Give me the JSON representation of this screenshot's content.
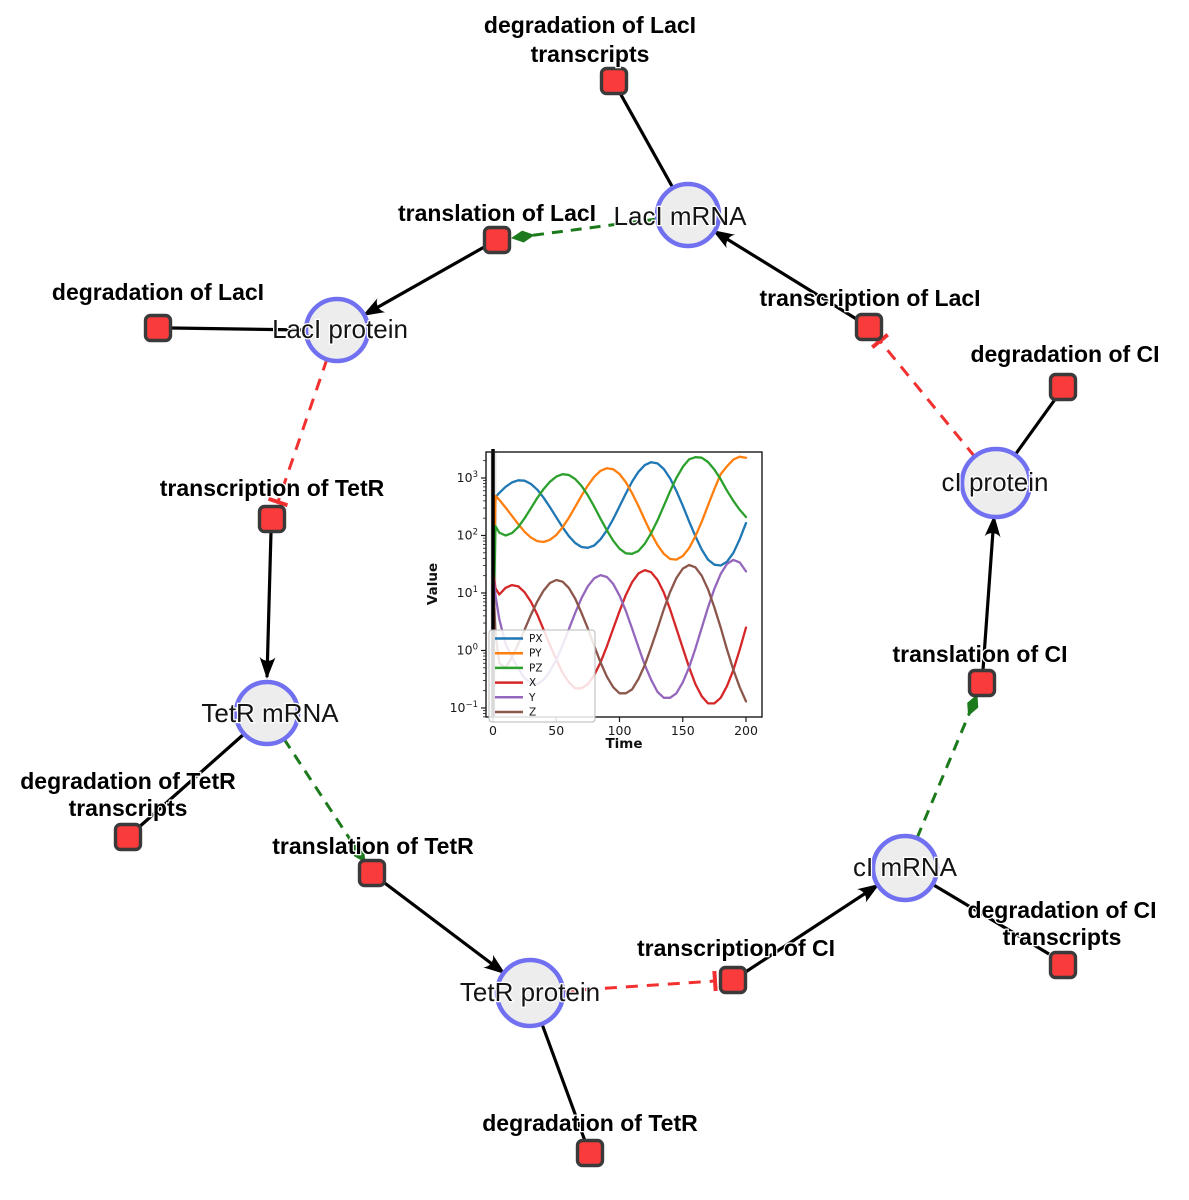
{
  "network": {
    "species": [
      {
        "id": "laci-mrna",
        "label": "LacI mRNA"
      },
      {
        "id": "laci-protein",
        "label": "LacI protein"
      },
      {
        "id": "ci-protein",
        "label": "cI protein"
      },
      {
        "id": "tetr-mrna",
        "label": "TetR mRNA"
      },
      {
        "id": "ci-mrna",
        "label": "cI mRNA"
      },
      {
        "id": "tetr-protein",
        "label": "TetR protein"
      }
    ],
    "reactions": [
      {
        "id": "degradation-of-laci-transcripts",
        "lines": [
          "degradation of LacI",
          "transcripts"
        ]
      },
      {
        "id": "translation-of-laci",
        "lines": [
          "translation of LacI"
        ]
      },
      {
        "id": "transcription-of-laci",
        "lines": [
          "transcription of LacI"
        ]
      },
      {
        "id": "degradation-of-laci",
        "lines": [
          "degradation of LacI"
        ]
      },
      {
        "id": "degradation-of-ci",
        "lines": [
          "degradation of CI"
        ]
      },
      {
        "id": "transcription-of-tetr",
        "lines": [
          "transcription of TetR"
        ]
      },
      {
        "id": "translation-of-ci",
        "lines": [
          "translation of CI"
        ]
      },
      {
        "id": "degradation-of-tetr-transcripts",
        "lines": [
          "degradation of TetR",
          "transcripts"
        ]
      },
      {
        "id": "translation-of-tetr",
        "lines": [
          "translation of TetR"
        ]
      },
      {
        "id": "degradation-of-ci-transcripts",
        "lines": [
          "degradation of CI",
          "transcripts"
        ]
      },
      {
        "id": "transcription-of-ci",
        "lines": [
          "transcription of CI"
        ]
      },
      {
        "id": "degradation-of-tetr",
        "lines": [
          "degradation of TetR"
        ]
      }
    ],
    "edges": [
      {
        "from": "LacI mRNA",
        "to": "degradation of LacI transcripts",
        "type": "consumption"
      },
      {
        "from": "LacI mRNA",
        "to": "translation of LacI",
        "type": "modifier"
      },
      {
        "from": "translation of LacI",
        "to": "LacI protein",
        "type": "production"
      },
      {
        "from": "transcription of LacI",
        "to": "LacI mRNA",
        "type": "production"
      },
      {
        "from": "cI protein",
        "to": "transcription of LacI",
        "type": "inhibition"
      },
      {
        "from": "LacI protein",
        "to": "degradation of LacI",
        "type": "consumption"
      },
      {
        "from": "LacI protein",
        "to": "transcription of TetR",
        "type": "inhibition"
      },
      {
        "from": "transcription of TetR",
        "to": "TetR mRNA",
        "type": "production"
      },
      {
        "from": "TetR mRNA",
        "to": "degradation of TetR transcripts",
        "type": "consumption"
      },
      {
        "from": "TetR mRNA",
        "to": "translation of TetR",
        "type": "modifier"
      },
      {
        "from": "translation of TetR",
        "to": "TetR protein",
        "type": "production"
      },
      {
        "from": "TetR protein",
        "to": "transcription of CI",
        "type": "inhibition"
      },
      {
        "from": "transcription of CI",
        "to": "cI mRNA",
        "type": "production"
      },
      {
        "from": "cI mRNA",
        "to": "degradation of CI transcripts",
        "type": "consumption"
      },
      {
        "from": "cI mRNA",
        "to": "translation of CI",
        "type": "modifier"
      },
      {
        "from": "translation of CI",
        "to": "cI protein",
        "type": "production"
      },
      {
        "from": "cI protein",
        "to": "degradation of CI",
        "type": "consumption"
      },
      {
        "from": "TetR protein",
        "to": "degradation of TetR",
        "type": "consumption"
      }
    ],
    "colors": {
      "species_fill": "#ededee",
      "species_stroke": "#7170f1",
      "reaction_fill": "#f93b3b",
      "reaction_stroke": "#3a3a3a",
      "consumption_edge": "#000000",
      "production_edge": "#000000",
      "modifier_edge": "#1c7a1c",
      "inhibition_edge": "#f23030"
    }
  },
  "chart_data": {
    "type": "line",
    "title": "",
    "xlabel": "Time",
    "ylabel": "Value",
    "xlim": [
      0,
      200
    ],
    "xticks": [
      0,
      50,
      100,
      150,
      200
    ],
    "yscale": "log",
    "yticks_exp": [
      -1,
      0,
      1,
      2,
      3
    ],
    "legend_position": "lower left",
    "grid": false,
    "event_line_x": 0,
    "x": [
      0,
      2,
      5,
      10,
      15,
      20,
      25,
      30,
      35,
      40,
      45,
      50,
      55,
      60,
      65,
      70,
      75,
      80,
      85,
      90,
      95,
      100,
      105,
      110,
      115,
      120,
      125,
      130,
      135,
      140,
      145,
      150,
      155,
      160,
      165,
      170,
      175,
      180,
      185,
      190,
      195,
      200
    ],
    "series": [
      {
        "name": "PX",
        "color": "#1f77b4",
        "values": [
          1,
          464,
          550,
          703,
          837,
          912,
          896,
          787,
          625,
          455,
          312,
          207,
          139,
          97,
          74,
          63,
          61,
          67,
          86,
          123,
          193,
          321,
          536,
          865,
          1279,
          1675,
          1884,
          1791,
          1432,
          984,
          593,
          329,
          176,
          97,
          57,
          38,
          31,
          30,
          35,
          50,
          86,
          164
        ]
      },
      {
        "name": "PY",
        "color": "#ff7f0e",
        "values": [
          1,
          489,
          417,
          306,
          219,
          157,
          116,
          92,
          80,
          77,
          84,
          102,
          139,
          204,
          315,
          491,
          743,
          1047,
          1331,
          1479,
          1422,
          1174,
          845,
          543,
          324,
          186,
          109,
          68,
          48,
          39,
          38,
          44,
          60,
          97,
          173,
          333,
          640,
          1170,
          1600,
          2100,
          2350,
          2250
        ]
      },
      {
        "name": "PZ",
        "color": "#2ca02c",
        "values": [
          1,
          145,
          112,
          100,
          110,
          140,
          200,
          300,
          450,
          640,
          857,
          1056,
          1162,
          1127,
          961,
          728,
          497,
          318,
          196,
          123,
          81,
          59,
          49,
          48,
          54,
          72,
          109,
          183,
          327,
          586,
          1005,
          1560,
          2113,
          2300,
          2254,
          1900,
          1400,
          950,
          600,
          400,
          280,
          210
        ]
      },
      {
        "name": "X",
        "color": "#d62728",
        "values": [
          25,
          12,
          9.4,
          12.3,
          13.7,
          13,
          10.3,
          7,
          4.2,
          2.3,
          1.25,
          0.69,
          0.41,
          0.28,
          0.22,
          0.22,
          0.26,
          0.37,
          0.62,
          1.18,
          2.4,
          4.8,
          9.2,
          15.4,
          21.9,
          25,
          23,
          16.9,
          10.2,
          5.2,
          2.4,
          1.1,
          0.51,
          0.26,
          0.16,
          0.12,
          0.12,
          0.15,
          0.24,
          0.46,
          1.03,
          2.5
        ]
      },
      {
        "name": "Y",
        "color": "#9467bd",
        "values": [
          22,
          9,
          3.5,
          1.3,
          0.76,
          0.48,
          0.33,
          0.27,
          0.26,
          0.31,
          0.43,
          0.69,
          1.23,
          2.35,
          4.5,
          8.1,
          13.1,
          18,
          20.5,
          19,
          14.4,
          9,
          4.9,
          2.4,
          1.14,
          0.56,
          0.31,
          0.19,
          0.15,
          0.15,
          0.18,
          0.28,
          0.51,
          1.08,
          2.46,
          5.6,
          11.8,
          21.5,
          32,
          37.6,
          34,
          23.7
        ]
      },
      {
        "name": "Z",
        "color": "#8c564b",
        "values": [
          18,
          2,
          0.6,
          0.5,
          0.76,
          1.3,
          2.3,
          4.2,
          7.1,
          11,
          14.9,
          16.8,
          15.7,
          12.2,
          8,
          4.5,
          2.4,
          1.2,
          0.62,
          0.35,
          0.23,
          0.18,
          0.18,
          0.21,
          0.32,
          0.56,
          1.13,
          2.4,
          5.2,
          10.4,
          18.2,
          26.5,
          30.7,
          28,
          20,
          11.6,
          5.6,
          2.5,
          1.04,
          0.46,
          0.23,
          0.13
        ]
      }
    ]
  }
}
